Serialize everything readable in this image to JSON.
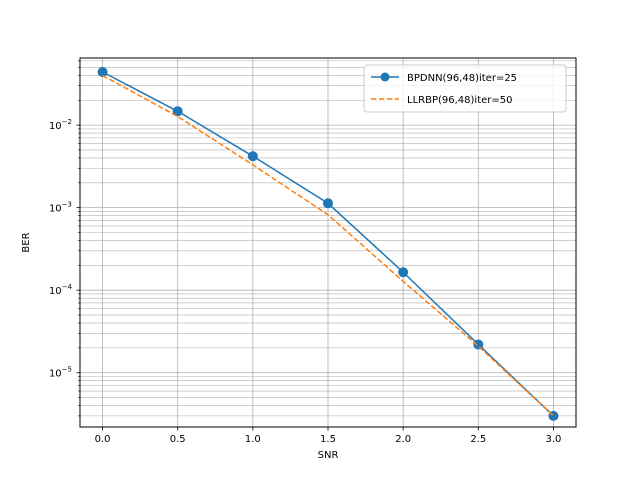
{
  "chart_data": {
    "type": "line",
    "title": "",
    "xlabel": "SNR",
    "ylabel": "BER",
    "x_scale": "linear",
    "y_scale": "log",
    "xlim": [
      -0.15,
      3.15
    ],
    "ylim": [
      2.2e-06,
      0.065
    ],
    "x_ticks": [
      0.0,
      0.5,
      1.0,
      1.5,
      2.0,
      2.5,
      3.0
    ],
    "x_tick_labels": [
      "0.0",
      "0.5",
      "1.0",
      "1.5",
      "2.0",
      "2.5",
      "3.0"
    ],
    "y_ticks_major": [
      1e-05,
      0.0001,
      0.001,
      0.01
    ],
    "y_tick_labels": [
      {
        "base": "10",
        "exp": "−5"
      },
      {
        "base": "10",
        "exp": "−4"
      },
      {
        "base": "10",
        "exp": "−3"
      },
      {
        "base": "10",
        "exp": "−2"
      }
    ],
    "grid": "major and minor",
    "legend_position": "top-right",
    "x": [
      0.0,
      0.5,
      1.0,
      1.5,
      2.0,
      2.5,
      3.0
    ],
    "series": [
      {
        "name": "BPDNN(96,48)iter=25",
        "values": [
          0.044,
          0.0147,
          0.0042,
          0.00113,
          0.000165,
          2.2e-05,
          3e-06
        ],
        "color": "#1f77b4",
        "line_style": "solid",
        "marker": "circle"
      },
      {
        "name": "LLRBP(96,48)iter=50",
        "values": [
          0.04,
          0.0127,
          0.0033,
          0.00082,
          0.000128,
          2.1e-05,
          3e-06
        ],
        "color": "#ff7f0e",
        "line_style": "dashed",
        "marker": "none"
      }
    ]
  }
}
